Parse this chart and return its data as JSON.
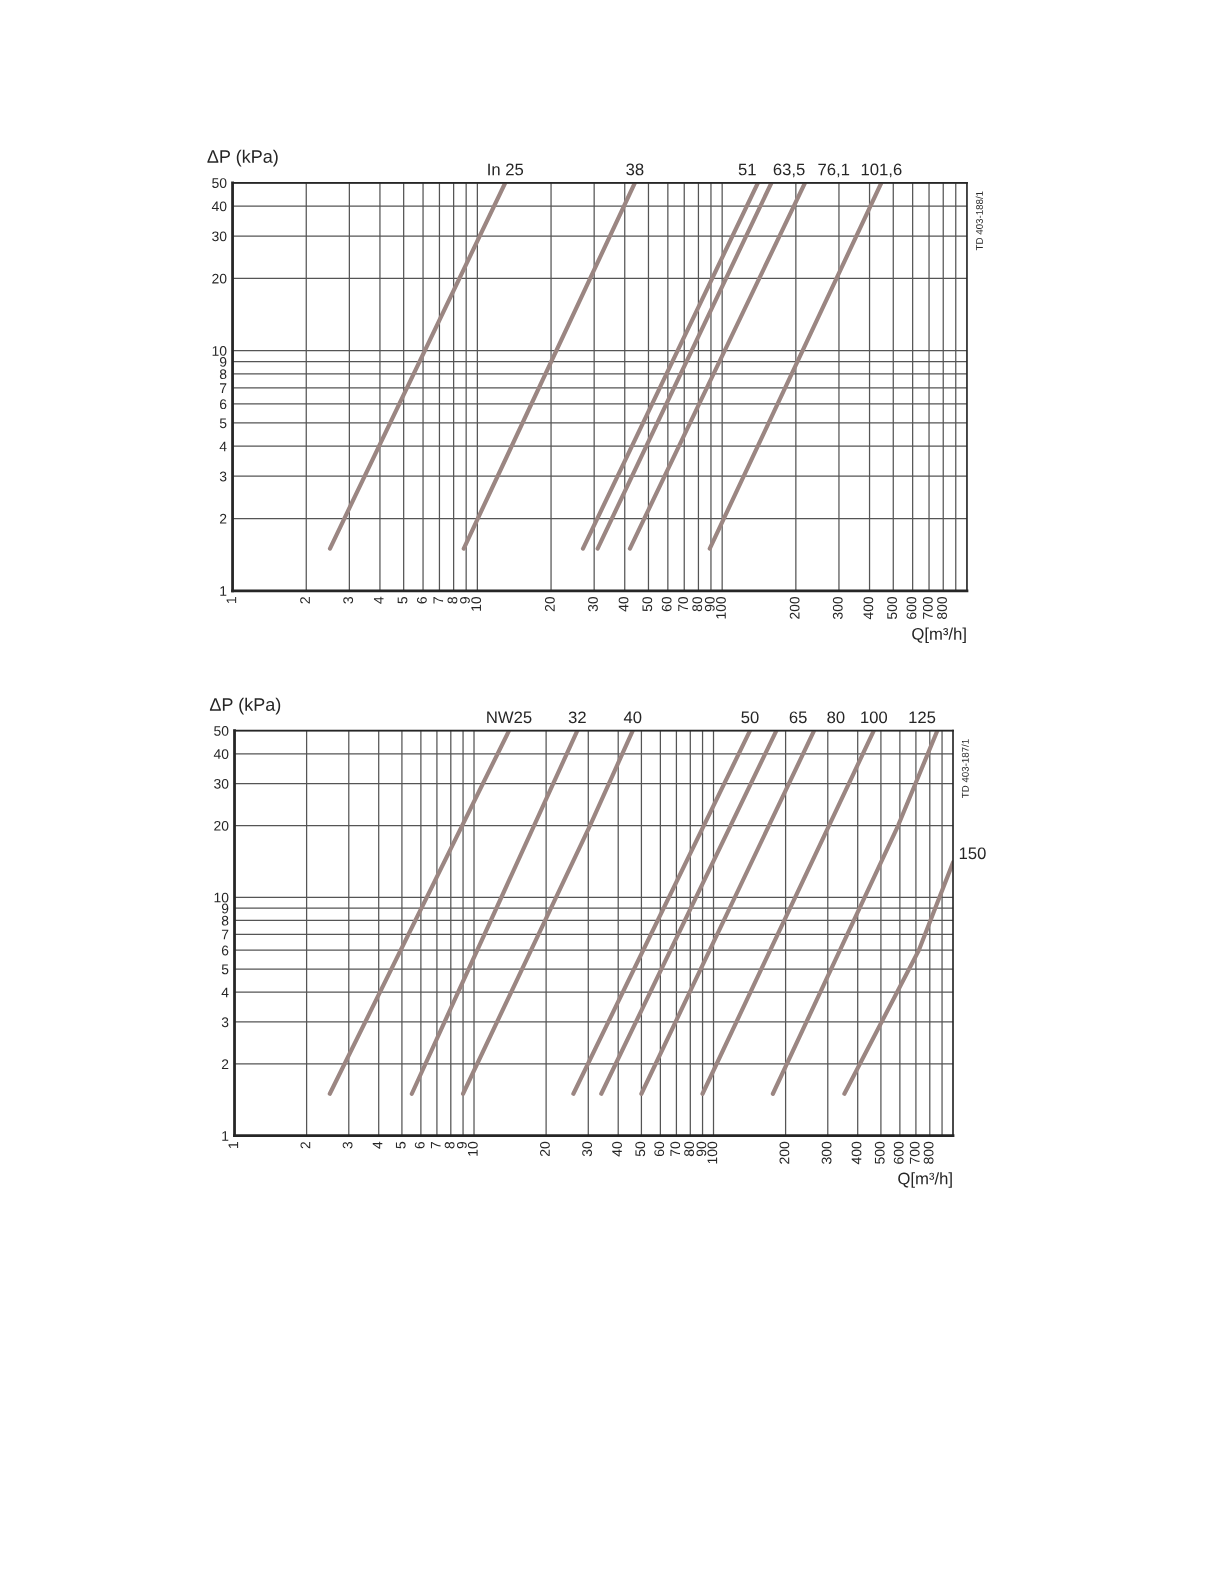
{
  "chart_data": [
    {
      "type": "line",
      "ylabel": "ΔP (kPa)",
      "xlabel": "Q[m³/h]",
      "log": "xy",
      "grid": true,
      "legend": false,
      "marker": "none",
      "line_style": "solid",
      "xlim": [
        1,
        1000
      ],
      "ylim": [
        1,
        50
      ],
      "xticks": [
        1,
        2,
        3,
        4,
        5,
        6,
        7,
        8,
        9,
        10,
        20,
        30,
        40,
        50,
        60,
        70,
        80,
        90,
        100,
        200,
        300,
        400,
        500,
        600,
        700,
        800,
        {
          "value": 900,
          "label": null
        }
      ],
      "yticks": [
        1,
        2,
        3,
        4,
        5,
        6,
        7,
        8,
        9,
        10,
        20,
        30,
        40,
        50
      ],
      "annotations": [
        "TD 403-188/1"
      ],
      "series": [
        {
          "name": "In 25",
          "color": "#9b8682",
          "x": [
            2.5,
            13
          ],
          "values": [
            1.5,
            50
          ]
        },
        {
          "name": "38",
          "color": "#9b8682",
          "x": [
            8.8,
            44
          ],
          "values": [
            1.5,
            50
          ]
        },
        {
          "name": "51",
          "color": "#9b8682",
          "x": [
            27,
            140
          ],
          "values": [
            1.5,
            50
          ]
        },
        {
          "name": "63,5",
          "color": "#9b8682",
          "x": [
            31,
            159
          ],
          "values": [
            1.5,
            50
          ]
        },
        {
          "name": "76,1",
          "color": "#9b8682",
          "x": [
            42,
            218
          ],
          "values": [
            1.5,
            50
          ]
        },
        {
          "name": "101,6",
          "color": "#9b8682",
          "x": [
            89,
            447
          ],
          "values": [
            1.5,
            50
          ]
        }
      ]
    },
    {
      "type": "line",
      "ylabel": "ΔP (kPa)",
      "xlabel": "Q[m³/h]",
      "log": "xy",
      "grid": true,
      "legend": false,
      "marker": "none",
      "line_style": "solid",
      "xlim": [
        1,
        1000
      ],
      "ylim": [
        1,
        50
      ],
      "xticks": [
        1,
        2,
        3,
        4,
        5,
        6,
        7,
        8,
        9,
        10,
        20,
        30,
        40,
        50,
        60,
        70,
        80,
        90,
        100,
        200,
        300,
        400,
        500,
        600,
        700,
        800,
        {
          "value": 900,
          "label": null
        }
      ],
      "yticks": [
        1,
        2,
        3,
        4,
        5,
        6,
        7,
        8,
        9,
        10,
        20,
        30,
        40,
        50
      ],
      "annotations": [
        "TD 403-187/1"
      ],
      "series": [
        {
          "name": "NW25",
          "color": "#9b8682",
          "x": [
            2.5,
            14
          ],
          "values": [
            1.5,
            50
          ]
        },
        {
          "name": "32",
          "color": "#9b8682",
          "x": [
            5.5,
            27
          ],
          "values": [
            1.5,
            50
          ]
        },
        {
          "name": "40",
          "color": "#9b8682",
          "x": [
            9,
            30.5,
            46
          ],
          "values": [
            1.5,
            20,
            50
          ]
        },
        {
          "name": "50",
          "color": "#9b8682",
          "x": [
            26,
            142
          ],
          "values": [
            1.5,
            50
          ]
        },
        {
          "name": "65",
          "color": "#9b8682",
          "x": [
            34,
            183
          ],
          "values": [
            1.5,
            50
          ]
        },
        {
          "name": "80",
          "color": "#9b8682",
          "x": [
            50,
            263
          ],
          "values": [
            1.5,
            50
          ]
        },
        {
          "name": "100",
          "color": "#9b8682",
          "x": [
            90,
            467
          ],
          "values": [
            1.5,
            50
          ]
        },
        {
          "name": "125",
          "color": "#9b8682",
          "x": [
            177,
            590,
            860
          ],
          "values": [
            1.5,
            20,
            50
          ]
        },
        {
          "name": "150",
          "color": "#9b8682",
          "x": [
            352,
            720,
            1000
          ],
          "values": [
            1.5,
            6,
            14
          ]
        }
      ]
    }
  ]
}
